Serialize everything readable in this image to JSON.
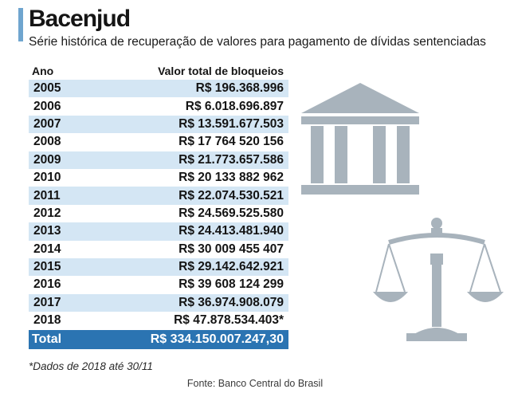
{
  "header": {
    "title": "Bacenjud",
    "subtitle": "Série histórica de recuperação de valores para pagamento de dívidas sentenciadas"
  },
  "table": {
    "columns": [
      "Ano",
      "Valor total de bloqueios"
    ],
    "rows": [
      {
        "year": "2005",
        "value": "R$ 196.368.996"
      },
      {
        "year": "2006",
        "value": "R$ 6.018.696.897"
      },
      {
        "year": "2007",
        "value": "R$ 13.591.677.503"
      },
      {
        "year": "2008",
        "value": "R$ 17 764 520 156"
      },
      {
        "year": "2009",
        "value": "R$ 21.773.657.586"
      },
      {
        "year": "2010",
        "value": "R$ 20 133 882 962"
      },
      {
        "year": "2011",
        "value": "R$ 22.074.530.521"
      },
      {
        "year": "2012",
        "value": "R$ 24.569.525.580"
      },
      {
        "year": "2013",
        "value": "R$ 24.413.481.940"
      },
      {
        "year": "2014",
        "value": "R$ 30 009 455 407"
      },
      {
        "year": "2015",
        "value": "R$ 29.142.642.921"
      },
      {
        "year": "2016",
        "value": "R$ 39 608 124 299"
      },
      {
        "year": "2017",
        "value": "R$ 36.974.908.079"
      },
      {
        "year": "2018",
        "value": "R$ 47.878.534.403*"
      }
    ],
    "total": {
      "label": "Total",
      "value": "R$ 334.150.007.247,30"
    }
  },
  "footnote": "*Dados de 2018 até 30/11",
  "source": "Fonte: Banco Central do Brasil",
  "icons": [
    "bank-building-icon",
    "justice-scale-icon"
  ],
  "colors": {
    "accent_bar": "#6fa5cf",
    "row_shade": "#d4e6f4",
    "total_bg": "#2b74b2",
    "icon_gray": "#a8b3bc"
  }
}
